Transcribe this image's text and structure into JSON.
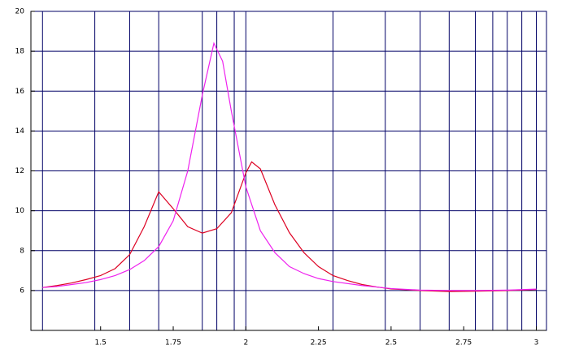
{
  "chart_data": {
    "type": "line",
    "xlim": [
      1.26,
      3.035
    ],
    "ylim": [
      4,
      20
    ],
    "xticks": [
      1.5,
      1.75,
      2,
      2.25,
      2.5,
      2.75,
      3
    ],
    "yticks": [
      6,
      8,
      10,
      12,
      14,
      16,
      18,
      20
    ],
    "xgrid": [
      1.3,
      1.48,
      1.6,
      1.7,
      1.85,
      1.9,
      1.96,
      2,
      2.3,
      2.48,
      2.6,
      2.7,
      2.79,
      2.85,
      2.9,
      2.95,
      3
    ],
    "grid_color": "#000066",
    "series": [
      {
        "color": "#dd0022",
        "x": [
          1.3,
          1.35,
          1.4,
          1.45,
          1.5,
          1.55,
          1.6,
          1.65,
          1.7,
          1.75,
          1.8,
          1.85,
          1.9,
          1.95,
          2.0,
          2.02,
          2.05,
          2.1,
          2.15,
          2.2,
          2.25,
          2.3,
          2.35,
          2.4,
          2.45,
          2.5,
          2.6,
          2.7,
          2.8,
          2.9,
          3.0
        ],
        "values": [
          6.15,
          6.25,
          6.38,
          6.55,
          6.75,
          7.1,
          7.8,
          9.2,
          10.95,
          10.1,
          9.2,
          8.88,
          9.1,
          9.9,
          11.9,
          12.45,
          12.1,
          10.3,
          8.9,
          7.9,
          7.2,
          6.75,
          6.5,
          6.3,
          6.18,
          6.08,
          6.0,
          5.95,
          5.97,
          6.0,
          6.05
        ]
      },
      {
        "color": "#ee22ee",
        "x": [
          1.3,
          1.35,
          1.4,
          1.45,
          1.5,
          1.55,
          1.6,
          1.65,
          1.7,
          1.75,
          1.8,
          1.85,
          1.89,
          1.92,
          1.95,
          2.0,
          2.05,
          2.1,
          2.15,
          2.2,
          2.25,
          2.3,
          2.4,
          2.5,
          2.6,
          2.7,
          2.8,
          2.9,
          3.0
        ],
        "values": [
          6.15,
          6.2,
          6.3,
          6.4,
          6.55,
          6.75,
          7.05,
          7.5,
          8.2,
          9.5,
          12.0,
          15.8,
          18.4,
          17.5,
          15.0,
          11.2,
          9.0,
          7.9,
          7.2,
          6.85,
          6.6,
          6.45,
          6.25,
          6.1,
          6.02,
          6.0,
          6.0,
          6.02,
          6.07
        ]
      }
    ]
  }
}
